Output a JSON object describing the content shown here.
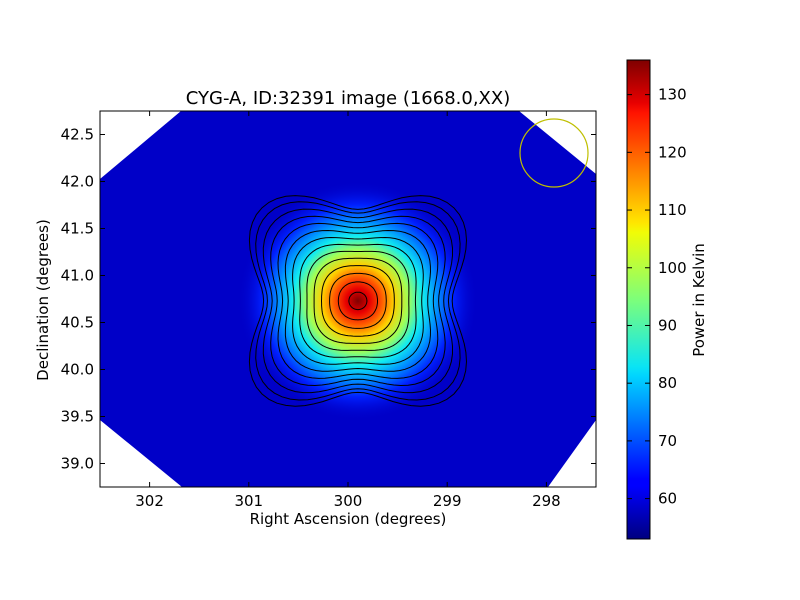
{
  "chart_data": {
    "type": "heatmap",
    "title": "CYG-A, ID:32391 image (1668.0,XX)",
    "xlabel": "Right Ascension (degrees)",
    "ylabel": "Declination (degrees)",
    "xlim": [
      302.5,
      297.5
    ],
    "ylim": [
      38.75,
      42.75
    ],
    "x_ticks": [
      302,
      301,
      300,
      299,
      298
    ],
    "y_ticks": [
      39.0,
      39.5,
      40.0,
      40.5,
      41.0,
      41.5,
      42.0,
      42.5
    ],
    "x_tick_labels": [
      "302",
      "301",
      "300",
      "299",
      "298"
    ],
    "y_tick_labels": [
      "39.0",
      "39.5",
      "40.0",
      "40.5",
      "41.0",
      "41.5",
      "42.0",
      "42.5"
    ],
    "source_peak": {
      "ra": 299.9,
      "dec": 40.73,
      "value": 136
    },
    "background_value": 53,
    "contour_levels": [
      57,
      62,
      68,
      74,
      80,
      86,
      92,
      98,
      104,
      110,
      116,
      122,
      128,
      134
    ],
    "beam_circle": {
      "ra": 297.7,
      "dec": 42.3,
      "radius_deg": 0.35,
      "color": "#bfbf00"
    },
    "colorbar": {
      "label": "Power in Kelvin",
      "min": 53,
      "max": 136,
      "ticks": [
        60,
        70,
        80,
        90,
        100,
        110,
        120,
        130
      ],
      "tick_labels": [
        "60",
        "70",
        "80",
        "90",
        "100",
        "110",
        "120",
        "130"
      ],
      "colormap": "jet"
    },
    "grid": false,
    "legend": "none"
  }
}
